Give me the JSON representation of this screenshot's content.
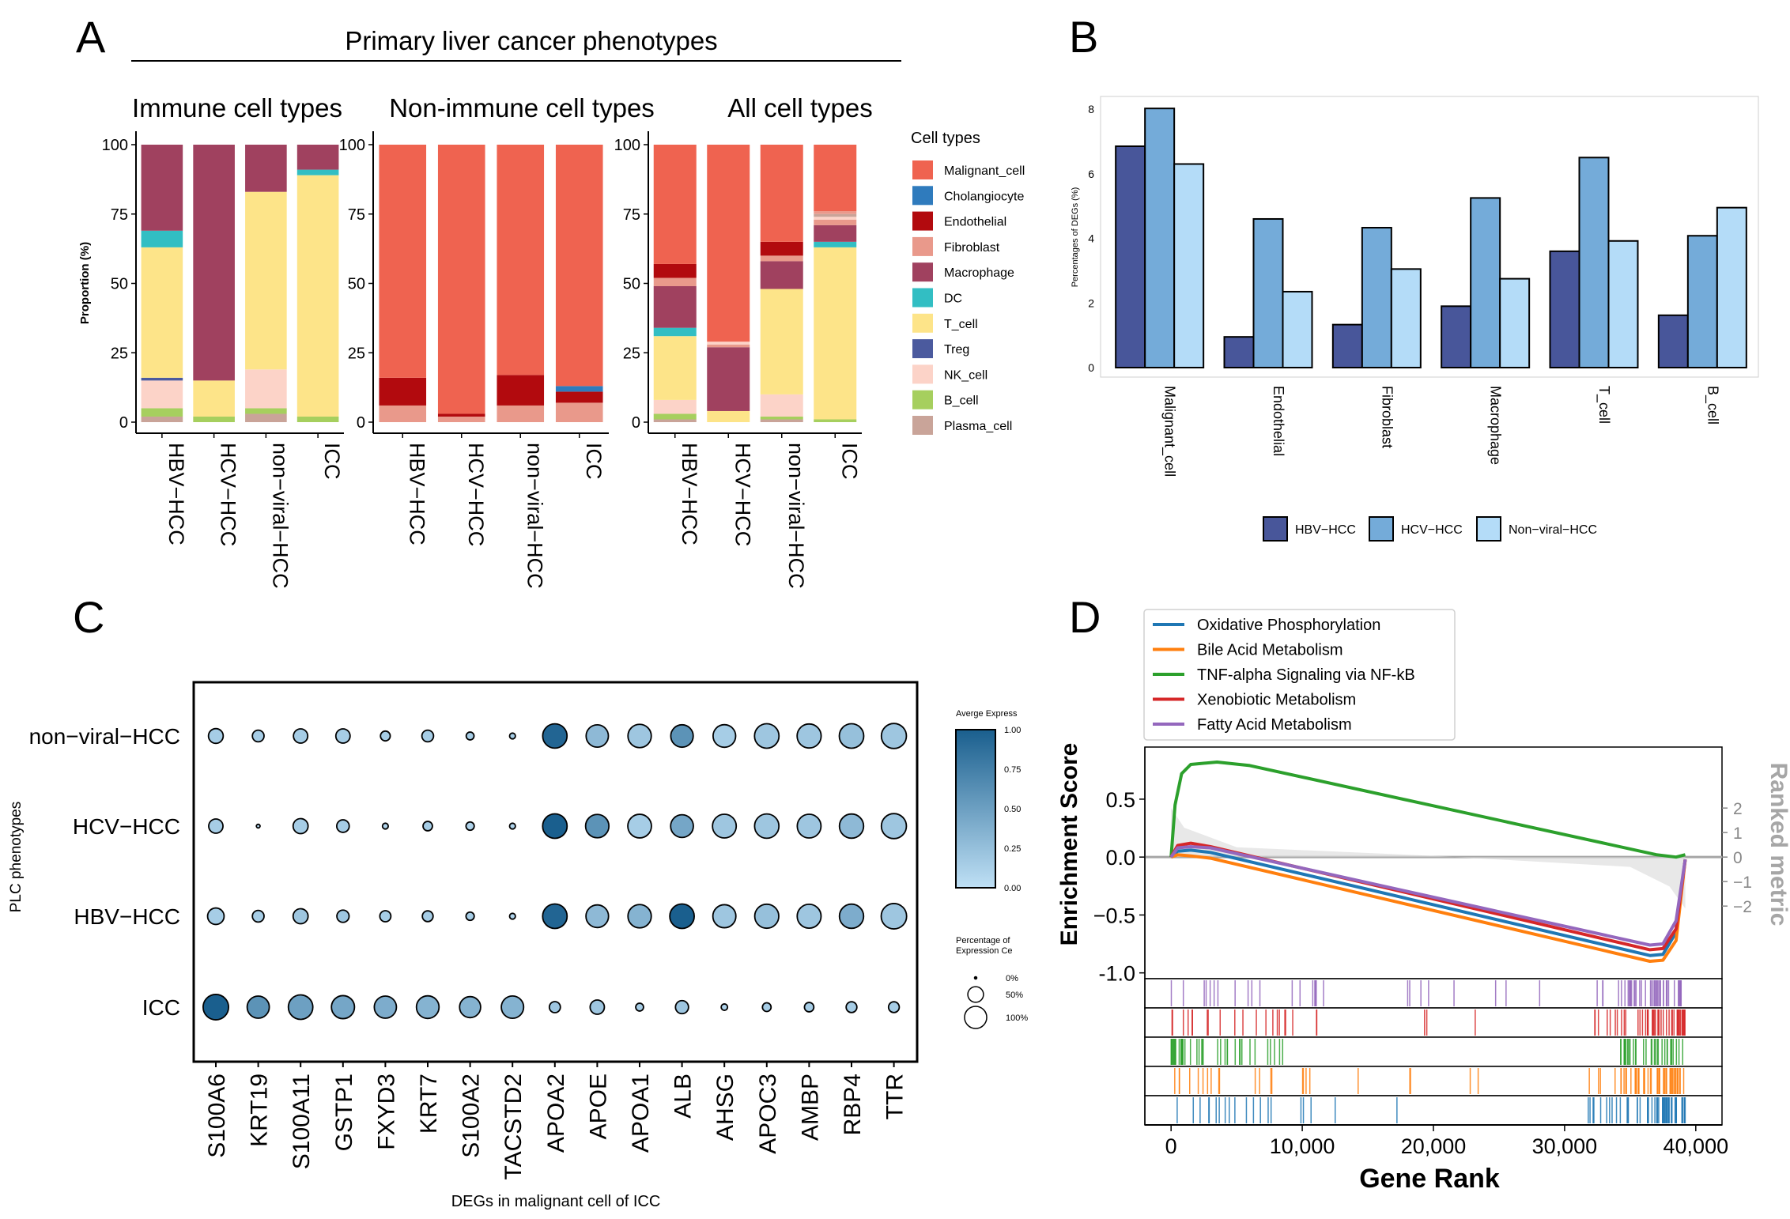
{
  "panel_letters": {
    "a": "A",
    "b": "B",
    "c": "C",
    "d": "D"
  },
  "colors": {
    "Malignant_cell": "#ef6350",
    "Cholangiocyte": "#2f7bbd",
    "Endothelial": "#b20a0e",
    "Fibroblast": "#e9998b",
    "Macrophage": "#a0415f",
    "DC": "#32bec3",
    "T_cell": "#fde489",
    "Treg": "#4b5a9e",
    "NK_cell": "#fcd3c8",
    "B_cell": "#a6cf5e",
    "Plasma_cell": "#c9a499",
    "HBV-HCC": "#48569a",
    "HCV-HCC": "#74abd9",
    "Non-viral-HCC": "#b4dcf8",
    "dot_low": "#bfe0f5",
    "dot_high": "#1a5f8e",
    "Oxidative Phosphorylation": "#1f77b4",
    "Bile Acid Metabolism": "#ff7f0e",
    "TNF-alpha Signaling via NF-kB": "#2ca02c",
    "Xenobiotic Metabolism": "#d62728",
    "Fatty Acid Metabolism": "#9467bd"
  },
  "chart_data": [
    {
      "panel": "A",
      "type": "bar",
      "stacked": true,
      "supertitle": "Primary liver cancer phenotypes",
      "ylabel": "Proportion (%)",
      "yticks": [
        "0",
        "25",
        "50",
        "75",
        "100"
      ],
      "ylim": [
        0,
        100
      ],
      "categories": [
        "HBV−HCC",
        "HCV−HCC",
        "non−viral−HCC",
        "ICC"
      ],
      "legend_title": "Cell types",
      "legend": [
        "Malignant_cell",
        "Cholangiocyte",
        "Endothelial",
        "Fibroblast",
        "Macrophage",
        "DC",
        "T_cell",
        "Treg",
        "NK_cell",
        "B_cell",
        "Plasma_cell"
      ],
      "subplots": [
        {
          "title": "Immune cell types",
          "stacks": [
            [
              [
                "Plasma_cell",
                2
              ],
              [
                "B_cell",
                3
              ],
              [
                "NK_cell",
                10
              ],
              [
                "Treg",
                1
              ],
              [
                "T_cell",
                47
              ],
              [
                "DC",
                6
              ],
              [
                "Macrophage",
                31
              ]
            ],
            [
              [
                "B_cell",
                2
              ],
              [
                "T_cell",
                13
              ],
              [
                "Macrophage",
                85
              ]
            ],
            [
              [
                "Plasma_cell",
                3
              ],
              [
                "B_cell",
                2
              ],
              [
                "NK_cell",
                14
              ],
              [
                "T_cell",
                64
              ],
              [
                "Macrophage",
                17
              ]
            ],
            [
              [
                "B_cell",
                2
              ],
              [
                "T_cell",
                87
              ],
              [
                "DC",
                2
              ],
              [
                "Macrophage",
                9
              ]
            ]
          ]
        },
        {
          "title": "Non-immune cell types",
          "stacks": [
            [
              [
                "Fibroblast",
                6
              ],
              [
                "Endothelial",
                10
              ],
              [
                "Malignant_cell",
                84
              ]
            ],
            [
              [
                "Fibroblast",
                2
              ],
              [
                "Endothelial",
                1
              ],
              [
                "Malignant_cell",
                97
              ]
            ],
            [
              [
                "Fibroblast",
                6
              ],
              [
                "Endothelial",
                11
              ],
              [
                "Malignant_cell",
                83
              ]
            ],
            [
              [
                "Fibroblast",
                7
              ],
              [
                "Endothelial",
                4
              ],
              [
                "Cholangiocyte",
                2
              ],
              [
                "Malignant_cell",
                87
              ]
            ]
          ]
        },
        {
          "title": "All cell types",
          "stacks": [
            [
              [
                "Plasma_cell",
                1
              ],
              [
                "B_cell",
                2
              ],
              [
                "NK_cell",
                5
              ],
              [
                "T_cell",
                23
              ],
              [
                "DC",
                3
              ],
              [
                "Macrophage",
                15
              ],
              [
                "Fibroblast",
                3
              ],
              [
                "Endothelial",
                5
              ],
              [
                "Malignant_cell",
                43
              ]
            ],
            [
              [
                "T_cell",
                4
              ],
              [
                "Macrophage",
                23
              ],
              [
                "Fibroblast",
                1
              ],
              [
                "NK_cell",
                1
              ],
              [
                "Malignant_cell",
                71
              ]
            ],
            [
              [
                "Plasma_cell",
                1
              ],
              [
                "B_cell",
                1
              ],
              [
                "NK_cell",
                8
              ],
              [
                "T_cell",
                38
              ],
              [
                "Macrophage",
                10
              ],
              [
                "Fibroblast",
                2
              ],
              [
                "Endothelial",
                5
              ],
              [
                "Malignant_cell",
                35
              ]
            ],
            [
              [
                "B_cell",
                1
              ],
              [
                "T_cell",
                62
              ],
              [
                "DC",
                2
              ],
              [
                "Macrophage",
                6
              ],
              [
                "Fibroblast",
                2
              ],
              [
                "NK_cell",
                1
              ],
              [
                "Plasma_cell",
                1
              ],
              [
                "Fibroblast",
                1
              ],
              [
                "Malignant_cell",
                24
              ]
            ]
          ]
        }
      ]
    },
    {
      "panel": "B",
      "type": "bar",
      "ylabel": "Percentages of DEGs (%)",
      "yticks": [
        "0",
        "2",
        "4",
        "6",
        "8"
      ],
      "ylim": [
        0,
        8.8
      ],
      "categories": [
        "Malignant_cell",
        "Endothelial",
        "Fibroblast",
        "Macrophage",
        "T_cell",
        "B_cell"
      ],
      "series": [
        {
          "name": "HBV−HCC",
          "key": "HBV-HCC",
          "values": [
            6.85,
            0.95,
            1.33,
            1.9,
            3.6,
            1.62
          ]
        },
        {
          "name": "HCV−HCC",
          "key": "HCV-HCC",
          "values": [
            8.02,
            4.6,
            4.33,
            5.25,
            6.5,
            4.08
          ]
        },
        {
          "name": "Non−viral−HCC",
          "key": "Non-viral-HCC",
          "values": [
            6.3,
            2.35,
            3.05,
            2.75,
            3.92,
            4.95
          ]
        }
      ]
    },
    {
      "panel": "C",
      "type": "scatter",
      "subtype": "dotplot",
      "xlabel": "DEGs in malignant cell of ICC",
      "ylabel": "PLC phenotypes",
      "genes": [
        "S100A6",
        "KRT19",
        "S100A11",
        "GSTP1",
        "FXYD3",
        "KRT7",
        "S100A2",
        "TACSTD2",
        "APOA2",
        "APOE",
        "APOA1",
        "ALB",
        "AHSG",
        "APOC3",
        "AMBP",
        "RBP4",
        "TTR"
      ],
      "phenotypes": [
        "non−viral−HCC",
        "HCV−HCC",
        "HBV−HCC",
        "ICC"
      ],
      "pct_expressing": [
        [
          32,
          20,
          30,
          30,
          14,
          20,
          9,
          5,
          87,
          73,
          80,
          74,
          75,
          88,
          85,
          88,
          92
        ],
        [
          30,
          2,
          33,
          23,
          5,
          13,
          10,
          5,
          88,
          80,
          82,
          76,
          83,
          87,
          83,
          86,
          92
        ],
        [
          40,
          20,
          33,
          22,
          18,
          17,
          10,
          5,
          88,
          75,
          80,
          88,
          78,
          85,
          84,
          86,
          95
        ],
        [
          95,
          72,
          88,
          78,
          72,
          75,
          65,
          73,
          18,
          30,
          9,
          25,
          6,
          11,
          13,
          17,
          17
        ]
      ],
      "avg_expression": [
        [
          0.15,
          0.15,
          0.15,
          0.15,
          0.15,
          0.15,
          0.15,
          0.15,
          0.95,
          0.3,
          0.2,
          0.6,
          0.15,
          0.2,
          0.2,
          0.25,
          0.2
        ],
        [
          0.15,
          0.1,
          0.15,
          0.15,
          0.1,
          0.15,
          0.1,
          0.1,
          1.0,
          0.6,
          0.15,
          0.45,
          0.2,
          0.2,
          0.2,
          0.3,
          0.2
        ],
        [
          0.15,
          0.15,
          0.2,
          0.2,
          0.15,
          0.15,
          0.15,
          0.1,
          0.95,
          0.3,
          0.35,
          1.0,
          0.2,
          0.25,
          0.2,
          0.4,
          0.2
        ],
        [
          1.0,
          0.6,
          0.5,
          0.45,
          0.4,
          0.35,
          0.35,
          0.35,
          0.2,
          0.2,
          0.15,
          0.2,
          0.1,
          0.15,
          0.15,
          0.15,
          0.15
        ]
      ],
      "color_legend_title": "Averge Express",
      "color_ticks": [
        "1.00",
        "0.75",
        "0.50",
        "0.25",
        "0.00"
      ],
      "size_legend_title_1": "Percentage of",
      "size_legend_title_2": "Expression Ce",
      "size_ticks": [
        "0%",
        "50%",
        "100%"
      ]
    },
    {
      "panel": "D",
      "type": "line",
      "xlabel": "Gene Rank",
      "ylabel": "Enrichment Score",
      "y2label": "Ranked metric",
      "xlim": [
        -2000,
        42000
      ],
      "ylim": [
        -1.05,
        0.95
      ],
      "xticks": [
        0,
        10000,
        20000,
        30000,
        40000
      ],
      "xtick_labels": [
        "0",
        "10,000",
        "20,000",
        "30,000",
        "40,000"
      ],
      "yticks": [
        0.5,
        0.0,
        -0.5,
        -1.0
      ],
      "ytick_labels": [
        "0.5",
        "0.0",
        "−0.5",
        "-1.0"
      ],
      "y2ticks": [
        2,
        1,
        0,
        -1,
        -2
      ],
      "y2tick_labels": [
        "2",
        "1",
        "0",
        "−1",
        "−2"
      ],
      "series": [
        {
          "name": "Oxidative Phosphorylation",
          "x": [
            0,
            500,
            1500,
            3000,
            36500,
            37500,
            38500,
            39200
          ],
          "y": [
            0,
            0.05,
            0.06,
            0.04,
            -0.85,
            -0.84,
            -0.65,
            -0.02
          ]
        },
        {
          "name": "Bile Acid Metabolism",
          "x": [
            0,
            500,
            1500,
            3000,
            36500,
            37500,
            38500,
            39200
          ],
          "y": [
            0,
            0.02,
            0.01,
            -0.01,
            -0.9,
            -0.89,
            -0.72,
            -0.02
          ]
        },
        {
          "name": "TNF-alpha Signaling via NF-kB",
          "x": [
            0,
            300,
            800,
            1500,
            3500,
            6000,
            37000,
            38500,
            39200
          ],
          "y": [
            0,
            0.45,
            0.72,
            0.8,
            0.82,
            0.79,
            0.02,
            0.0,
            0.02
          ]
        },
        {
          "name": "Xenobiotic Metabolism",
          "x": [
            0,
            500,
            1500,
            3000,
            36500,
            37500,
            38500,
            39200
          ],
          "y": [
            0,
            0.1,
            0.12,
            0.09,
            -0.8,
            -0.79,
            -0.62,
            -0.02
          ]
        },
        {
          "name": "Fatty Acid Metabolism",
          "x": [
            0,
            500,
            1500,
            3000,
            36500,
            37500,
            38500,
            39200
          ],
          "y": [
            0,
            0.08,
            0.09,
            0.08,
            -0.76,
            -0.75,
            -0.55,
            -0.02
          ]
        }
      ],
      "ranked_metric": {
        "x": [
          0,
          1000,
          5000,
          20000,
          35000,
          38000,
          39200
        ],
        "y": [
          2.0,
          1.2,
          0.4,
          0.05,
          -0.4,
          -1.2,
          -2.1
        ]
      }
    }
  ]
}
